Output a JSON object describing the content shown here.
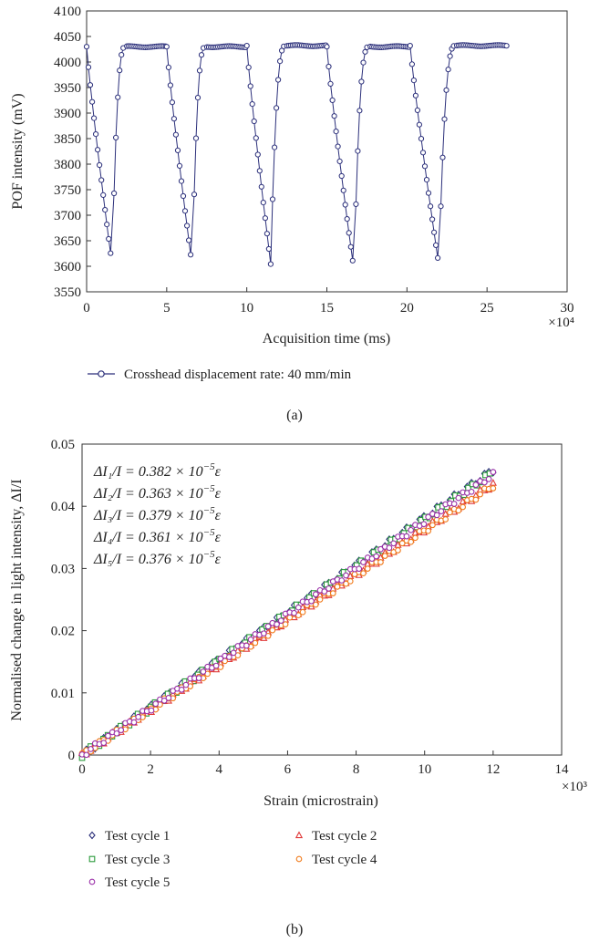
{
  "chart_data": [
    {
      "type": "line",
      "panel_label": "(a)",
      "xlabel": "Acquisition time (ms)",
      "ylabel": "POF intensity (mV)",
      "x_multiplier": "×10⁴",
      "xlim": [
        0,
        30
      ],
      "ylim": [
        3550,
        4100
      ],
      "xticks": [
        0,
        5,
        10,
        15,
        20,
        25,
        30
      ],
      "yticks": [
        3550,
        3600,
        3650,
        3700,
        3750,
        3800,
        3850,
        3900,
        3950,
        4000,
        4050,
        4100
      ],
      "grid": false,
      "legend_position": "bottom",
      "series": [
        {
          "name": "Crosshead displacement rate: 40 mm/min",
          "color": "#2b2f7a",
          "marker": "circle",
          "cycles": [
            {
              "start": 0.0,
              "min_time": 1.6,
              "min_value": 3600,
              "recover_top": 2.4,
              "plateau_end": 5.0,
              "plateau": 4030
            },
            {
              "start": 5.0,
              "min_time": 6.6,
              "min_value": 3597,
              "recover_top": 7.4,
              "plateau_end": 10.0,
              "plateau": 4030
            },
            {
              "start": 10.0,
              "min_time": 11.5,
              "min_value": 3603,
              "recover_top": 12.4,
              "plateau_end": 15.0,
              "plateau": 4032
            },
            {
              "start": 15.0,
              "min_time": 16.7,
              "min_value": 3590,
              "recover_top": 17.6,
              "plateau_end": 20.2,
              "plateau": 4030
            },
            {
              "start": 20.2,
              "min_time": 22.0,
              "min_value": 3600,
              "recover_top": 23.0,
              "plateau_end": 26.3,
              "plateau": 4032
            }
          ]
        }
      ]
    },
    {
      "type": "scatter",
      "panel_label": "(b)",
      "xlabel": "Strain (microstrain)",
      "ylabel": "Normalised change in light intensity, ΔI/I",
      "x_multiplier": "×10³",
      "xlim": [
        0,
        14
      ],
      "ylim": [
        0,
        0.05
      ],
      "xticks": [
        0,
        2,
        4,
        6,
        8,
        10,
        12,
        14
      ],
      "yticks": [
        0,
        0.01,
        0.02,
        0.03,
        0.04,
        0.05
      ],
      "ytick_labels": [
        "0",
        "0.01",
        "0.02",
        "0.03",
        "0.04",
        "0.05"
      ],
      "grid": false,
      "legend_position": "bottom",
      "annotations": [
        {
          "lhs": "ΔI₁/I",
          "coef": "0.382",
          "exp": "−5"
        },
        {
          "lhs": "ΔI₂/I",
          "coef": "0.363",
          "exp": "−5"
        },
        {
          "lhs": "ΔI₃/I",
          "coef": "0.379",
          "exp": "−5"
        },
        {
          "lhs": "ΔI₄/I",
          "coef": "0.361",
          "exp": "−5"
        },
        {
          "lhs": "ΔI₅/I",
          "coef": "0.376",
          "exp": "−5"
        }
      ],
      "series": [
        {
          "name": "Test cycle 1",
          "color": "#2b2f7a",
          "marker": "diamond",
          "slope": 0.00382,
          "x_max": 12.0
        },
        {
          "name": "Test cycle 2",
          "color": "#e03a3a",
          "marker": "triangle",
          "slope": 0.00363,
          "x_max": 12.0
        },
        {
          "name": "Test cycle 3",
          "color": "#2a9a3a",
          "marker": "square",
          "slope": 0.00379,
          "x_max": 11.9
        },
        {
          "name": "Test cycle 4",
          "color": "#f07a1a",
          "marker": "circle",
          "slope": 0.00361,
          "x_max": 12.0
        },
        {
          "name": "Test cycle 5",
          "color": "#9a2fa8",
          "marker": "circle",
          "slope": 0.00376,
          "x_max": 12.0
        }
      ]
    }
  ]
}
